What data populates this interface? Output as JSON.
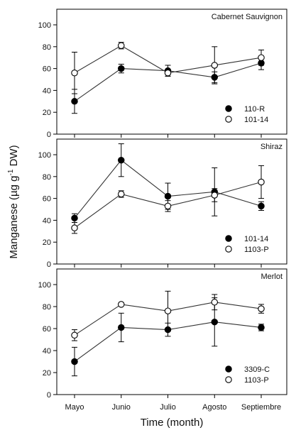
{
  "chart_data": {
    "type": "line",
    "xlabel": "Time (month)",
    "ylabel": {
      "pre": "Manganese (µg g",
      "sup": "-1",
      "post": " DW)"
    },
    "categories": [
      "Mayo",
      "Junio",
      "Julio",
      "Agosto",
      "Septiembre"
    ],
    "yticks": [
      0,
      20,
      40,
      60,
      80,
      100
    ],
    "ylim": [
      0,
      100
    ],
    "grid": false,
    "legend_position": "bottom-right",
    "colors": {
      "filled": "#000000",
      "open": "#ffffff",
      "line": "#333333"
    },
    "panels": [
      {
        "title": "Cabernet Sauvignon",
        "series": [
          {
            "name": "110-R",
            "marker": "filled",
            "values": [
              30,
              60,
              58,
              52,
              65
            ],
            "errors": [
              11,
              4,
              5,
              5,
              6
            ]
          },
          {
            "name": "101-14",
            "marker": "open",
            "values": [
              56,
              81,
              56,
              63,
              70
            ],
            "errors": [
              19,
              3,
              3,
              17,
              7
            ]
          }
        ]
      },
      {
        "title": "Shiraz",
        "series": [
          {
            "name": "101-14",
            "marker": "filled",
            "values": [
              42,
              95,
              62,
              66,
              53
            ],
            "errors": [
              4,
              15,
              12,
              22,
              4
            ]
          },
          {
            "name": "1103-P",
            "marker": "open",
            "values": [
              33,
              64,
              53,
              63,
              75
            ],
            "errors": [
              5,
              3,
              5,
              6,
              15
            ]
          }
        ]
      },
      {
        "title": "Merlot",
        "series": [
          {
            "name": "3309-C",
            "marker": "filled",
            "values": [
              30,
              61,
              59,
              66,
              61
            ],
            "errors": [
              13,
              13,
              6,
              22,
              3
            ]
          },
          {
            "name": "1103-P",
            "marker": "open",
            "values": [
              54,
              82,
              76,
              84,
              78
            ],
            "errors": [
              5,
              1,
              18,
              7,
              4
            ]
          }
        ]
      }
    ]
  }
}
